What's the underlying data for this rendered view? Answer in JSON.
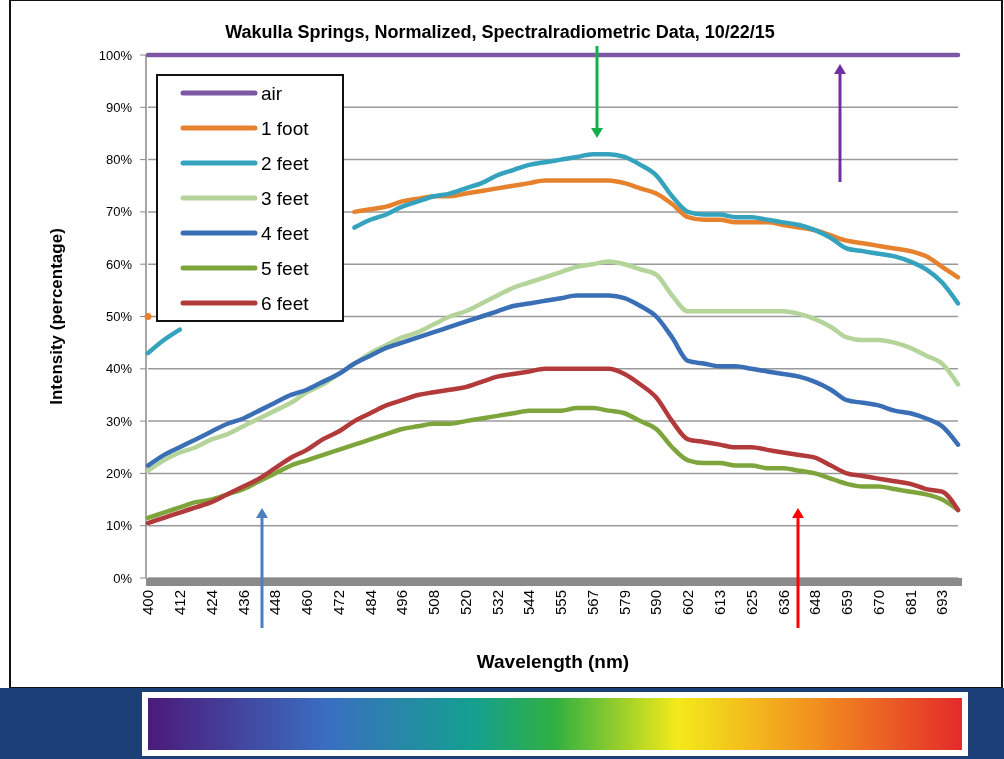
{
  "chart_data": {
    "type": "line",
    "title": "Wakulla Springs, Normalized, Spectralradiometric Data, 10/22/15",
    "xlabel": "Wavelength (nm)",
    "ylabel": "Intensity (percentage)",
    "categories": [
      "400",
      null,
      "412",
      null,
      "424",
      null,
      "436",
      null,
      "448",
      null,
      "460",
      null,
      "472",
      null,
      "484",
      null,
      "496",
      null,
      "508",
      null,
      "520",
      null,
      "532",
      null,
      "544",
      null,
      "555",
      null,
      "567",
      null,
      "579",
      null,
      "590",
      null,
      "602",
      null,
      "613",
      null,
      "625",
      null,
      "636",
      null,
      "648",
      null,
      "659",
      null,
      "670",
      null,
      "681",
      null,
      "693",
      null
    ],
    "ylim": [
      0,
      100
    ],
    "yticks": [
      {
        "value": 0,
        "label": "0%"
      },
      {
        "value": 10,
        "label": "10%"
      },
      {
        "value": 20,
        "label": "20%"
      },
      {
        "value": 30,
        "label": "30%"
      },
      {
        "value": 40,
        "label": "40%"
      },
      {
        "value": 50,
        "label": "50%"
      },
      {
        "value": 60,
        "label": "60%"
      },
      {
        "value": 70,
        "label": "70%"
      },
      {
        "value": 80,
        "label": "80%"
      },
      {
        "value": 90,
        "label": "90%"
      },
      {
        "value": 100,
        "label": "100%"
      }
    ],
    "grid": "y",
    "legend": "top left",
    "marker": "none",
    "line_style": "solid",
    "series": [
      {
        "name": "air",
        "color": "#7e57a4",
        "values": [
          100,
          100,
          100,
          100,
          100,
          100,
          100,
          100,
          100,
          100,
          100,
          100,
          100,
          100,
          100,
          100,
          100,
          100,
          100,
          100,
          100,
          100,
          100,
          100,
          100,
          100,
          100,
          100,
          100,
          100,
          100,
          100,
          100,
          100,
          100,
          100,
          100,
          100,
          100,
          100,
          100,
          100,
          100,
          100,
          100,
          100,
          100,
          100,
          100,
          100,
          100,
          100
        ]
      },
      {
        "name": "1 foot",
        "color": "#e6822e",
        "values": [
          50,
          null,
          null,
          null,
          null,
          null,
          null,
          null,
          null,
          null,
          null,
          null,
          null,
          70,
          70.5,
          71,
          72,
          72.5,
          73,
          73,
          73.5,
          74,
          74.5,
          75,
          75.5,
          76,
          76,
          76,
          76,
          76,
          75.5,
          74.5,
          73.5,
          71.5,
          69,
          68.5,
          68.5,
          68,
          68,
          68,
          67.5,
          67,
          66.5,
          65.5,
          64.5,
          64,
          63.5,
          63,
          62.5,
          61.5,
          59.5,
          57.5
        ]
      },
      {
        "name": "2 feet",
        "color": "#35a3bd",
        "values": [
          43,
          45.5,
          47.5,
          null,
          null,
          null,
          null,
          null,
          null,
          null,
          null,
          null,
          null,
          67,
          68.5,
          69.5,
          71,
          72,
          73,
          73.5,
          74.5,
          75.5,
          77,
          78,
          79,
          79.5,
          80,
          80.5,
          81,
          81,
          80.5,
          79,
          77,
          73,
          70,
          69.5,
          69.5,
          69,
          69,
          68.5,
          68,
          67.5,
          66.5,
          65,
          63,
          62.5,
          62,
          61.5,
          60.5,
          59,
          56.5,
          52.5
        ]
      },
      {
        "name": "3 feet",
        "color": "#b4d49a",
        "values": [
          20.5,
          22.5,
          24,
          25,
          26.5,
          27.5,
          29,
          30.5,
          32,
          33.5,
          35.5,
          37,
          39,
          41,
          43,
          44.5,
          46,
          47,
          48.5,
          50,
          51,
          52.5,
          54,
          55.5,
          56.5,
          57.5,
          58.5,
          59.5,
          60,
          60.5,
          60,
          59,
          58,
          54,
          51,
          51,
          51,
          51,
          51,
          51,
          51,
          50.5,
          49.5,
          48,
          46,
          45.5,
          45.5,
          45,
          44,
          42.5,
          41,
          37
        ]
      },
      {
        "name": "4 feet",
        "color": "#3a6fb6",
        "values": [
          21.5,
          23.5,
          25,
          26.5,
          28,
          29.5,
          30.5,
          32,
          33.5,
          35,
          36,
          37.5,
          39,
          41,
          42.5,
          44,
          45,
          46,
          47,
          48,
          49,
          50,
          51,
          52,
          52.5,
          53,
          53.5,
          54,
          54,
          54,
          53.5,
          52,
          50,
          46,
          41.5,
          41,
          40.5,
          40.5,
          40,
          39.5,
          39,
          38.5,
          37.5,
          36,
          34,
          33.5,
          33,
          32,
          31.5,
          30.5,
          29,
          25.5
        ]
      },
      {
        "name": "5 feet",
        "color": "#7ea53c",
        "values": [
          11.5,
          12.5,
          13.5,
          14.5,
          15,
          16,
          17,
          18.5,
          20,
          21.5,
          22.5,
          23.5,
          24.5,
          25.5,
          26.5,
          27.5,
          28.5,
          29,
          29.5,
          29.5,
          30,
          30.5,
          31,
          31.5,
          32,
          32,
          32,
          32.5,
          32.5,
          32,
          31.5,
          30,
          28.5,
          25,
          22.5,
          22,
          22,
          21.5,
          21.5,
          21,
          21,
          20.5,
          20,
          19,
          18,
          17.5,
          17.5,
          17,
          16.5,
          16,
          15,
          13
        ]
      },
      {
        "name": "6 feet",
        "color": "#b33a3a",
        "values": [
          10.5,
          11.5,
          12.5,
          13.5,
          14.5,
          16,
          17.5,
          19,
          21,
          23,
          24.5,
          26.5,
          28,
          30,
          31.5,
          33,
          34,
          35,
          35.5,
          36,
          36.5,
          37.5,
          38.5,
          39,
          39.5,
          40,
          40,
          40,
          40,
          40,
          39,
          37,
          34.5,
          30,
          26.5,
          26,
          25.5,
          25,
          25,
          24.5,
          24,
          23.5,
          23,
          21.5,
          20,
          19.5,
          19,
          18.5,
          18,
          17,
          16.5,
          13
        ]
      }
    ]
  }
}
